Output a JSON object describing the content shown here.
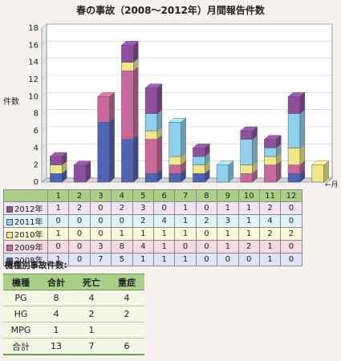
{
  "title": "春の事故（2008〜2012年）月間報告件数",
  "chart_data": {
    "type": "bar",
    "stacked": true,
    "title": "春の事故（2008〜2012年）月間報告件数",
    "ylabel": "件数",
    "xlabel_arrow": "←月",
    "ylim": [
      0,
      18
    ],
    "yticks": [
      "0",
      "2",
      "4",
      "6",
      "8",
      "10",
      "12",
      "14",
      "16",
      "18"
    ],
    "grid": true,
    "legend_placement": "left",
    "categories": [
      "1",
      "2",
      "3",
      "4",
      "5",
      "6",
      "7",
      "8",
      "9",
      "10",
      "11",
      "12"
    ],
    "series": [
      {
        "name": "2008年",
        "color": "#4f63b5",
        "values": [
          1,
          0,
          7,
          5,
          1,
          1,
          1,
          0,
          0,
          0,
          1,
          0
        ]
      },
      {
        "name": "2009年",
        "color": "#c9689a",
        "values": [
          0,
          0,
          3,
          8,
          4,
          1,
          0,
          0,
          1,
          2,
          1,
          0
        ]
      },
      {
        "name": "2010年",
        "color": "#f0e68a",
        "values": [
          1,
          0,
          0,
          1,
          1,
          1,
          1,
          0,
          1,
          1,
          2,
          2
        ]
      },
      {
        "name": "2011年",
        "color": "#8fd0ec",
        "values": [
          0,
          0,
          0,
          0,
          2,
          4,
          1,
          2,
          3,
          1,
          4,
          0
        ]
      },
      {
        "name": "2012年",
        "color": "#8e4f9e",
        "values": [
          1,
          2,
          0,
          2,
          3,
          0,
          1,
          0,
          1,
          1,
          2,
          0
        ]
      }
    ]
  },
  "data_table": {
    "rows": [
      {
        "label": "2012年",
        "color": "#8e4f9e",
        "values": [
          "1",
          "2",
          "0",
          "2",
          "3",
          "0",
          "1",
          "0",
          "1",
          "1",
          "2",
          "0"
        ]
      },
      {
        "label": "2011年",
        "color": "#8fd0ec",
        "values": [
          "0",
          "0",
          "0",
          "0",
          "2",
          "4",
          "1",
          "2",
          "3",
          "1",
          "4",
          "0"
        ]
      },
      {
        "label": "2010年",
        "color": "#f0e68a",
        "values": [
          "1",
          "0",
          "0",
          "1",
          "1",
          "1",
          "1",
          "0",
          "1",
          "1",
          "2",
          "2"
        ]
      },
      {
        "label": "2009年",
        "color": "#c9689a",
        "values": [
          "0",
          "0",
          "3",
          "8",
          "4",
          "1",
          "0",
          "0",
          "1",
          "2",
          "1",
          "0"
        ]
      },
      {
        "label": "2008年",
        "color": "#4f63b5",
        "values": [
          "1",
          "0",
          "7",
          "5",
          "1",
          "1",
          "1",
          "0",
          "0",
          "0",
          "1",
          "0"
        ]
      }
    ]
  },
  "accident_table": {
    "title": "機種別事故件数:",
    "headers": [
      "機種",
      "合計",
      "死亡",
      "重症"
    ],
    "rows": [
      [
        "PG",
        "8",
        "4",
        "4"
      ],
      [
        "HG",
        "4",
        "2",
        "2"
      ],
      [
        "MPG",
        "1",
        "1",
        ""
      ]
    ],
    "total": [
      "合計",
      "13",
      "7",
      "6"
    ]
  }
}
